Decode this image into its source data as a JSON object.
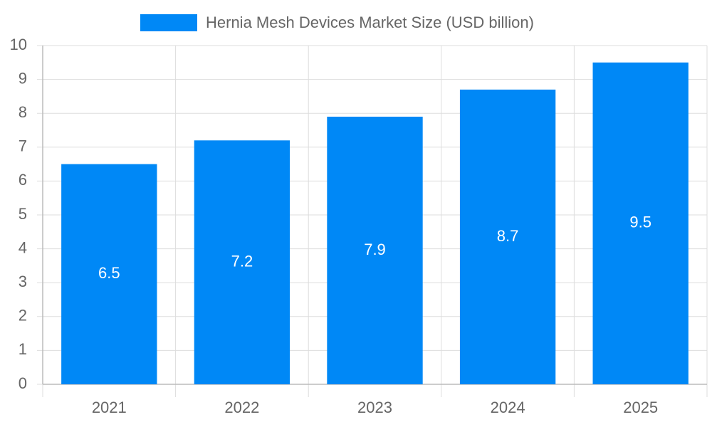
{
  "chart_data": {
    "type": "bar",
    "categories": [
      "2021",
      "2022",
      "2023",
      "2024",
      "2025"
    ],
    "series": [
      {
        "name": "Hernia Mesh Devices Market Size (USD billion)",
        "color": "#0088f6",
        "values": [
          6.5,
          7.2,
          7.9,
          8.7,
          9.5
        ]
      }
    ],
    "ylim": [
      0,
      10
    ],
    "yticks": [
      0,
      1,
      2,
      3,
      4,
      5,
      6,
      7,
      8,
      9,
      10
    ],
    "grid": true,
    "legend": "top"
  }
}
